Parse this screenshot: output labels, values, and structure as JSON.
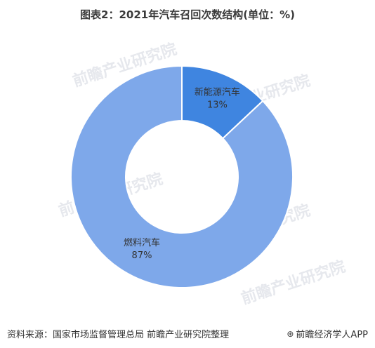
{
  "title": "图表2：2021年汽车召回次数结构(单位：%)",
  "watermark": "前瞻产业研究院",
  "footer": {
    "source": "资料来源：国家市场监督管理总局 前瞻产业研究院整理",
    "brand": "前瞻经济学人APP",
    "brand_icon": "qianzhan-logo-icon"
  },
  "chart_data": {
    "type": "pie",
    "donut": true,
    "title": "图表2：2021年汽车召回次数结构(单位：%)",
    "categories": [
      "新能源汽车",
      "燃料汽车"
    ],
    "values": [
      13,
      87
    ],
    "labels": [
      "13%",
      "87%"
    ],
    "colors": [
      "#3f85e0",
      "#7ea8ea"
    ],
    "start_angle": "12 o'clock, clockwise"
  }
}
